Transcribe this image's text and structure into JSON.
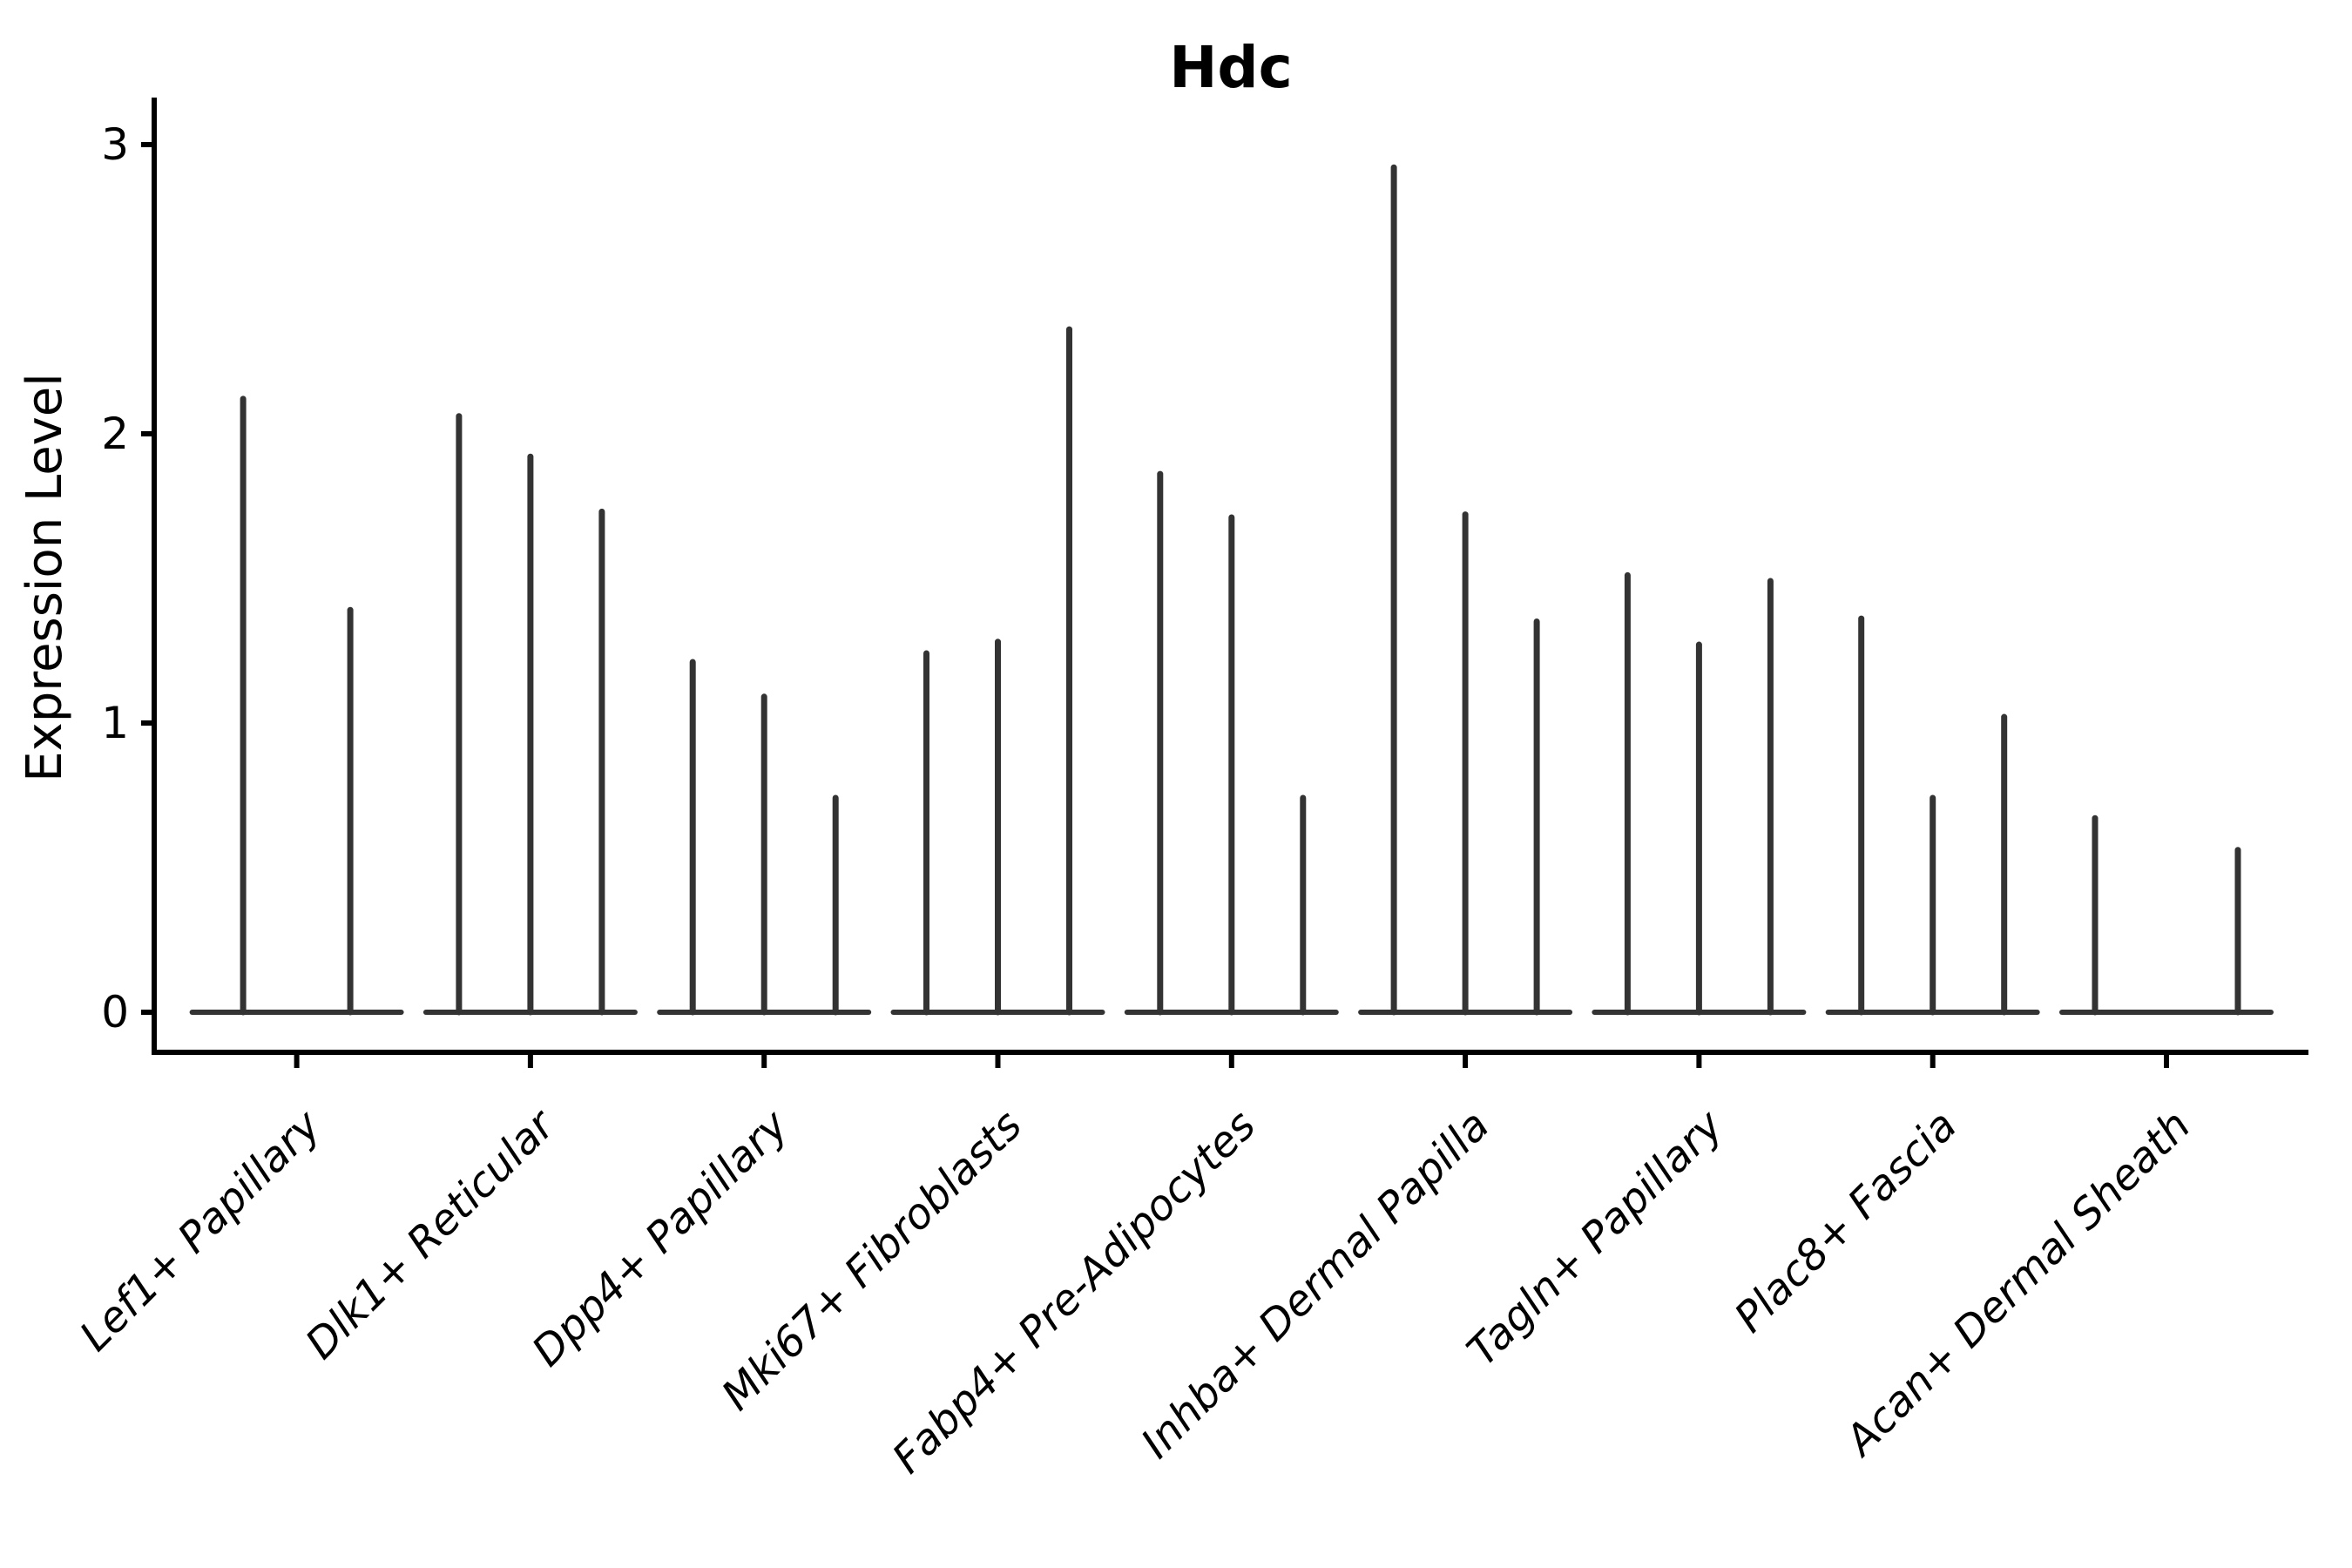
{
  "figure": {
    "title": "Hdc"
  },
  "chart_data": {
    "type": "violin",
    "title": "Hdc",
    "xlabel": "",
    "ylabel": "Expression Level",
    "yticks": [
      0,
      1,
      2,
      3
    ],
    "ylim": [
      0,
      3
    ],
    "grid": false,
    "legend": null,
    "x_tick_rotation": 45,
    "categories": [
      "Lef1+ Papillary",
      "Dlk1+ Reticular",
      "Dpp4+ Papillary",
      "Mki67+ Fibroblasts",
      "Fabp4+ Pre-Adipocytes",
      "Inhba+ Dermal Papilla",
      "Tagln+ Papillary",
      "Plac8+ Fascia",
      "Acan+ Dermal Sheath"
    ],
    "series": [
      {
        "category": "Lef1+ Papillary",
        "violin_maxima": [
          2.13,
          1.4
        ]
      },
      {
        "category": "Dlk1+ Reticular",
        "violin_maxima": [
          2.07,
          1.93,
          1.74
        ]
      },
      {
        "category": "Dpp4+ Papillary",
        "violin_maxima": [
          1.22,
          1.1,
          0.75
        ]
      },
      {
        "category": "Mki67+ Fibroblasts",
        "violin_maxima": [
          1.25,
          1.29,
          2.37
        ]
      },
      {
        "category": "Fabp4+ Pre-Adipocytes",
        "violin_maxima": [
          1.87,
          1.72,
          0.75
        ]
      },
      {
        "category": "Inhba+ Dermal Papilla",
        "violin_maxima": [
          2.93,
          1.73,
          1.36
        ]
      },
      {
        "category": "Tagln+ Papillary",
        "violin_maxima": [
          1.52,
          1.28,
          1.5
        ]
      },
      {
        "category": "Plac8+ Fascia",
        "violin_maxima": [
          1.37,
          0.75,
          1.03
        ]
      },
      {
        "category": "Acan+ Dermal Sheath",
        "violin_maxima": [
          0.68,
          0,
          0.57
        ]
      }
    ],
    "colors": {
      "violin_line": "#333333",
      "axis": "#000000",
      "text": "#000000",
      "background": "#ffffff"
    }
  }
}
